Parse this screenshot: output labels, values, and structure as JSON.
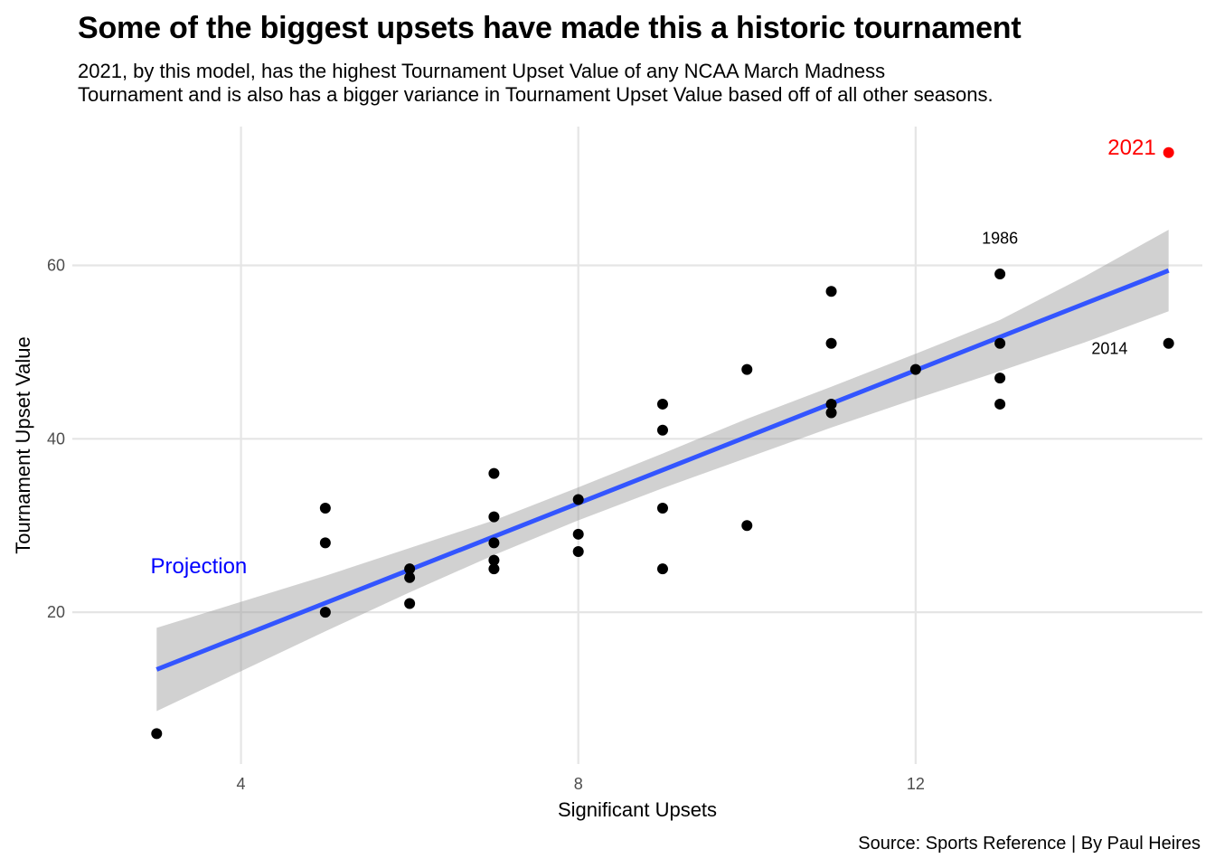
{
  "title": "Some of the biggest upsets have made this a historic tournament",
  "subtitle": [
    "2021, by this model, has the highest Tournament Upset Value of any NCAA March Madness",
    "Tournament and is also has a bigger variance in Tournament Upset Value based off of all other seasons."
  ],
  "caption": "Source: Sports Reference | By Paul Heires",
  "chart_data": {
    "type": "scatter",
    "xlabel": "Significant Upsets",
    "ylabel": "Tournament Upset Value",
    "xlim": [
      2.0,
      15.4
    ],
    "ylim": [
      2.5,
      76.0
    ],
    "xticks": [
      4,
      8,
      12
    ],
    "yticks": [
      20,
      40,
      60
    ],
    "grid": true,
    "points": [
      {
        "x": 3,
        "y": 6
      },
      {
        "x": 5,
        "y": 32
      },
      {
        "x": 5,
        "y": 28
      },
      {
        "x": 5,
        "y": 20
      },
      {
        "x": 6,
        "y": 25
      },
      {
        "x": 6,
        "y": 24
      },
      {
        "x": 6,
        "y": 21
      },
      {
        "x": 7,
        "y": 36
      },
      {
        "x": 7,
        "y": 31
      },
      {
        "x": 7,
        "y": 28
      },
      {
        "x": 7,
        "y": 26
      },
      {
        "x": 7,
        "y": 25
      },
      {
        "x": 8,
        "y": 33
      },
      {
        "x": 8,
        "y": 29
      },
      {
        "x": 8,
        "y": 27
      },
      {
        "x": 9,
        "y": 44
      },
      {
        "x": 9,
        "y": 41
      },
      {
        "x": 9,
        "y": 32
      },
      {
        "x": 9,
        "y": 25
      },
      {
        "x": 10,
        "y": 48
      },
      {
        "x": 10,
        "y": 30
      },
      {
        "x": 11,
        "y": 57
      },
      {
        "x": 11,
        "y": 51
      },
      {
        "x": 11,
        "y": 44
      },
      {
        "x": 11,
        "y": 43
      },
      {
        "x": 12,
        "y": 48
      },
      {
        "x": 13,
        "y": 59
      },
      {
        "x": 13,
        "y": 51
      },
      {
        "x": 13,
        "y": 47
      },
      {
        "x": 13,
        "y": 44
      },
      {
        "x": 15,
        "y": 51
      }
    ],
    "highlight_point": {
      "x": 15,
      "y": 73,
      "label": "2021",
      "color": "#ff0000"
    },
    "trend_line": {
      "x": [
        3,
        15
      ],
      "y": [
        13.4,
        59.4
      ],
      "color": "#3355ff"
    },
    "confidence_band": {
      "x": [
        3,
        4,
        5,
        6,
        7,
        8,
        9,
        10,
        11,
        12,
        13,
        14,
        15
      ],
      "lower": [
        8.6,
        13.2,
        17.8,
        22.3,
        26.6,
        30.6,
        34.3,
        37.8,
        41.3,
        44.6,
        47.8,
        51.1,
        54.7
      ],
      "upper": [
        18.2,
        21.2,
        24.2,
        27.4,
        30.6,
        34.4,
        38.3,
        42.3,
        46.0,
        49.8,
        53.7,
        58.7,
        64.1
      ]
    },
    "annotations": [
      {
        "text": "1986",
        "x": 13,
        "y": 62.5,
        "color": "#000000",
        "size": "small"
      },
      {
        "text": "2014",
        "x": 14.3,
        "y": 49.8,
        "color": "#000000",
        "size": "small"
      },
      {
        "text": "Projection",
        "x": 3.5,
        "y": 24.5,
        "color": "#0000ff",
        "size": "big"
      }
    ]
  }
}
